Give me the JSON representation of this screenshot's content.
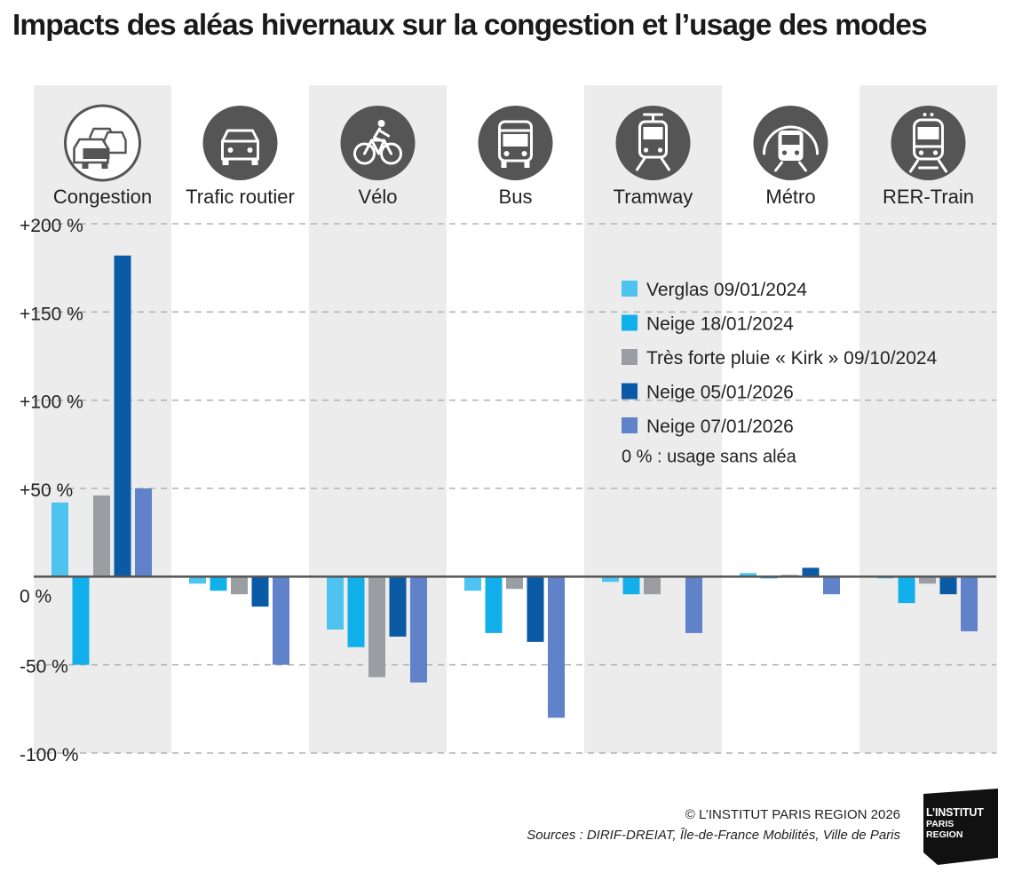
{
  "title": "Impacts des aléas hivernaux sur la congestion et l’usage des modes",
  "credits": {
    "copyright": "© L’INSTITUT PARIS REGION 2026",
    "sources": "Sources : DIRIF-DREIAT, Île-de-France Mobilités, Ville de Paris"
  },
  "logo": {
    "line1": "L’INSTITUT",
    "line2": "PARIS",
    "line3": "REGION"
  },
  "chart_data": {
    "type": "bar",
    "title": "Impacts des aléas hivernaux sur la congestion et l’usage des modes",
    "xlabel": "",
    "ylabel": "",
    "ylim": [
      -100,
      200
    ],
    "yticks": [
      {
        "value": 200,
        "label": "+200 %"
      },
      {
        "value": 150,
        "label": "+150 %"
      },
      {
        "value": 100,
        "label": "+100 %"
      },
      {
        "value": 50,
        "label": "+50 %"
      },
      {
        "value": 0,
        "label": "0 %"
      },
      {
        "value": -50,
        "label": "-50 %"
      },
      {
        "value": -100,
        "label": "-100 %"
      }
    ],
    "grid": true,
    "legend_position": "top-right",
    "legend_note": "0 % : usage sans aléa",
    "categories": [
      "Congestion",
      "Trafic routier",
      "Vélo",
      "Bus",
      "Tramway",
      "Métro",
      "RER-Train"
    ],
    "category_icons": [
      "traffic-jam-icon",
      "car-icon",
      "bicycle-icon",
      "bus-icon",
      "tram-icon",
      "metro-icon",
      "train-icon"
    ],
    "series": [
      {
        "name": "Verglas 09/01/2024",
        "color": "#4dc3f0",
        "values": [
          42,
          -4,
          -30,
          -8,
          -3,
          2,
          -1
        ]
      },
      {
        "name": "Neige 18/01/2024",
        "color": "#12b0ea",
        "values": [
          -50,
          -8,
          -40,
          -32,
          -10,
          -1,
          -15
        ]
      },
      {
        "name": "Très forte pluie « Kirk » 09/10/2024",
        "color": "#9a9ea3",
        "values": [
          46,
          -10,
          -57,
          -7,
          -10,
          1,
          -4
        ]
      },
      {
        "name": "Neige 05/01/2026",
        "color": "#0a5aa5",
        "values": [
          182,
          -17,
          -34,
          -37,
          0,
          5,
          -10
        ]
      },
      {
        "name": "Neige 07/01/2026",
        "color": "#5f82c8",
        "values": [
          50,
          -50,
          -60,
          -80,
          -32,
          -10,
          -31
        ]
      }
    ]
  }
}
